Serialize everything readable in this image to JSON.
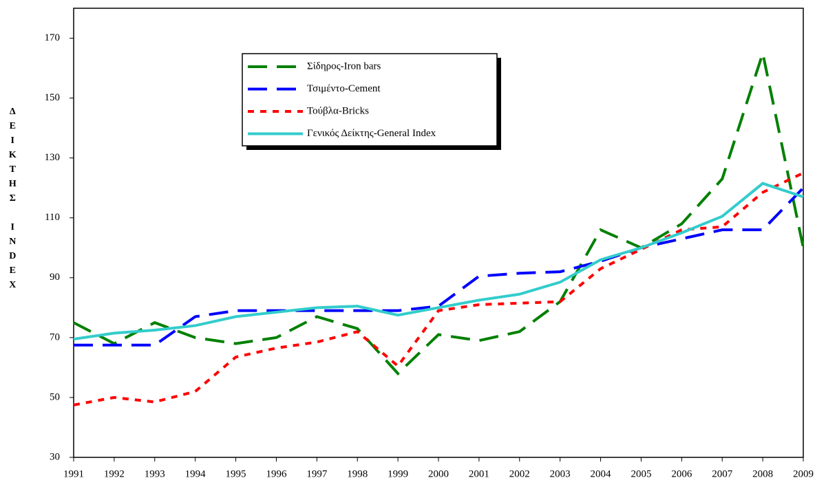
{
  "chart_data": {
    "type": "line",
    "y_label": "ΔΕΙΚΤΗΣ INDEX",
    "categories": [
      "1991",
      "1992",
      "1993",
      "1994",
      "1995",
      "1996",
      "1997",
      "1998",
      "1999",
      "2000",
      "2001",
      "2002",
      "2003",
      "2004",
      "2005",
      "2006",
      "2007",
      "2008",
      "2009"
    ],
    "series": [
      {
        "name": "Σίδηρος-Iron bars",
        "color": "#008000",
        "style": "dashed",
        "values": [
          75,
          68,
          75,
          70,
          68,
          70,
          77,
          73,
          58,
          71,
          69,
          72,
          82,
          106,
          100,
          108,
          123,
          165,
          100
        ]
      },
      {
        "name": "Τσιμέντο-Cement",
        "color": "#0000ff",
        "style": "dashed",
        "values": [
          67.5,
          67.5,
          67.5,
          77,
          79,
          79,
          79,
          79,
          79,
          80.5,
          90.5,
          91.5,
          92,
          95.5,
          100,
          103,
          106,
          106,
          120
        ]
      },
      {
        "name": "Τούβλα-Bricks",
        "color": "#ff0000",
        "style": "dotted",
        "values": [
          47.5,
          50,
          48.5,
          52,
          63.5,
          66.5,
          68.5,
          72,
          60.5,
          79,
          81,
          81.5,
          82,
          93,
          99.5,
          106,
          107,
          118.5,
          125
        ]
      },
      {
        "name": "Γενικός Δείκτης-General Index",
        "color": "#33cccc",
        "style": "solid",
        "values": [
          69.5,
          71.5,
          72.5,
          74,
          77,
          78.5,
          80,
          80.5,
          77.5,
          80,
          82.5,
          84.5,
          88.5,
          96,
          100,
          105,
          110.5,
          121.5,
          117
        ]
      }
    ],
    "ylim": [
      30,
      180
    ],
    "yticks": [
      30,
      50,
      70,
      90,
      110,
      130,
      150,
      170
    ],
    "grid": false,
    "legend": "top-left"
  }
}
